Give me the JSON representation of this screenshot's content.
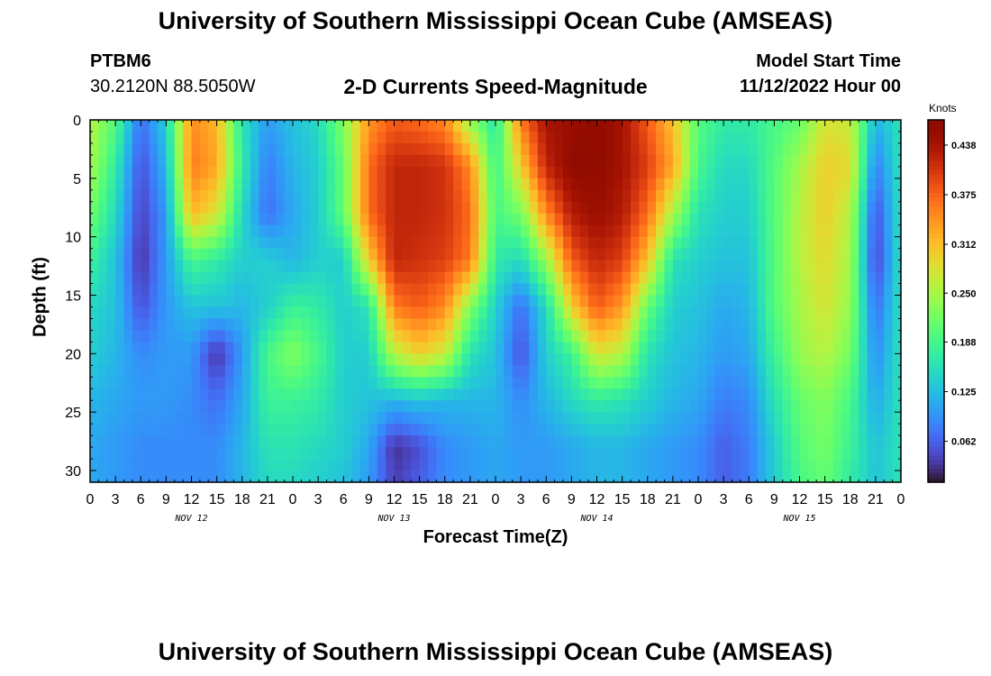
{
  "header": {
    "title": "University of Southern Mississippi Ocean Cube (AMSEAS)",
    "station_id": "PTBM6",
    "station_coords": "30.2120N  88.5050W",
    "plot_title": "2-D Currents Speed-Magnitude",
    "start_label": "Model Start Time",
    "start_value": "11/12/2022 Hour 00"
  },
  "footer": {
    "title": "University of Southern Mississippi Ocean Cube (AMSEAS)"
  },
  "chart_data": {
    "type": "heatmap",
    "title": "2-D Currents Speed-Magnitude",
    "xlabel": "Forecast Time(Z)",
    "ylabel": "Depth (ft)",
    "colorbar_label": "Knots",
    "xlim_hours": [
      0,
      96
    ],
    "ylim": [
      0,
      31
    ],
    "y_inverted": true,
    "yticks": [
      0,
      5,
      10,
      15,
      20,
      25,
      30
    ],
    "x_tick_labels": [
      "0",
      "3",
      "6",
      "9",
      "12",
      "15",
      "18",
      "21",
      "0",
      "3",
      "6",
      "9",
      "12",
      "15",
      "18",
      "21",
      "0",
      "3",
      "6",
      "9",
      "12",
      "15",
      "18",
      "21",
      "0",
      "3",
      "6",
      "9",
      "12",
      "15",
      "18",
      "21",
      "0"
    ],
    "date_labels": [
      {
        "label": "NOV 12",
        "hour": 12
      },
      {
        "label": "NOV 13",
        "hour": 36
      },
      {
        "label": "NOV 14",
        "hour": 60
      },
      {
        "label": "NOV 15",
        "hour": 84
      }
    ],
    "colorbar_ticks": [
      0.062,
      0.125,
      0.188,
      0.25,
      0.312,
      0.375,
      0.438
    ],
    "colorbar_range": [
      0.01,
      0.47
    ],
    "colors": {
      "low": "#30123b",
      "high": "#7a0403"
    },
    "depths_ft": [
      0,
      4,
      8,
      12,
      16,
      20,
      24,
      28,
      31
    ],
    "times_hours": [
      0,
      3,
      6,
      9,
      12,
      15,
      18,
      21,
      24,
      27,
      30,
      33,
      36,
      39,
      42,
      45,
      48,
      51,
      54,
      57,
      60,
      63,
      66,
      69,
      72,
      75,
      78,
      81,
      84,
      87,
      90,
      93,
      96
    ],
    "values": [
      [
        0.26,
        0.2,
        0.07,
        0.14,
        0.35,
        0.32,
        0.16,
        0.1,
        0.13,
        0.15,
        0.23,
        0.34,
        0.38,
        0.37,
        0.35,
        0.24,
        0.16,
        0.36,
        0.44,
        0.45,
        0.46,
        0.44,
        0.38,
        0.31,
        0.2,
        0.17,
        0.17,
        0.19,
        0.21,
        0.28,
        0.27,
        0.12,
        0.16
      ],
      [
        0.25,
        0.17,
        0.05,
        0.12,
        0.36,
        0.33,
        0.17,
        0.08,
        0.12,
        0.14,
        0.21,
        0.37,
        0.42,
        0.42,
        0.41,
        0.35,
        0.18,
        0.3,
        0.42,
        0.46,
        0.46,
        0.44,
        0.4,
        0.33,
        0.19,
        0.15,
        0.15,
        0.2,
        0.25,
        0.3,
        0.29,
        0.08,
        0.16
      ],
      [
        0.22,
        0.15,
        0.04,
        0.1,
        0.32,
        0.28,
        0.15,
        0.07,
        0.11,
        0.14,
        0.21,
        0.37,
        0.42,
        0.42,
        0.41,
        0.37,
        0.19,
        0.22,
        0.35,
        0.43,
        0.45,
        0.43,
        0.37,
        0.25,
        0.16,
        0.14,
        0.14,
        0.2,
        0.26,
        0.3,
        0.26,
        0.05,
        0.16
      ],
      [
        0.18,
        0.13,
        0.03,
        0.1,
        0.19,
        0.17,
        0.14,
        0.14,
        0.12,
        0.14,
        0.14,
        0.3,
        0.42,
        0.41,
        0.4,
        0.36,
        0.17,
        0.15,
        0.24,
        0.38,
        0.42,
        0.4,
        0.31,
        0.16,
        0.14,
        0.13,
        0.13,
        0.2,
        0.26,
        0.29,
        0.25,
        0.04,
        0.16
      ],
      [
        0.15,
        0.13,
        0.05,
        0.1,
        0.13,
        0.13,
        0.12,
        0.14,
        0.18,
        0.17,
        0.14,
        0.16,
        0.36,
        0.38,
        0.35,
        0.23,
        0.14,
        0.07,
        0.15,
        0.3,
        0.38,
        0.34,
        0.21,
        0.14,
        0.13,
        0.11,
        0.12,
        0.2,
        0.25,
        0.28,
        0.24,
        0.07,
        0.16
      ],
      [
        0.14,
        0.12,
        0.09,
        0.1,
        0.1,
        0.03,
        0.1,
        0.19,
        0.23,
        0.19,
        0.14,
        0.14,
        0.26,
        0.3,
        0.27,
        0.16,
        0.13,
        0.05,
        0.14,
        0.18,
        0.28,
        0.26,
        0.16,
        0.13,
        0.12,
        0.1,
        0.11,
        0.18,
        0.24,
        0.26,
        0.22,
        0.09,
        0.16
      ],
      [
        0.12,
        0.11,
        0.1,
        0.1,
        0.09,
        0.07,
        0.11,
        0.18,
        0.18,
        0.17,
        0.14,
        0.13,
        0.12,
        0.13,
        0.12,
        0.12,
        0.12,
        0.09,
        0.12,
        0.15,
        0.17,
        0.16,
        0.14,
        0.12,
        0.11,
        0.08,
        0.09,
        0.16,
        0.21,
        0.23,
        0.19,
        0.11,
        0.16
      ],
      [
        0.11,
        0.1,
        0.09,
        0.09,
        0.09,
        0.09,
        0.12,
        0.16,
        0.16,
        0.15,
        0.14,
        0.11,
        0.03,
        0.05,
        0.09,
        0.1,
        0.11,
        0.1,
        0.1,
        0.11,
        0.12,
        0.12,
        0.11,
        0.1,
        0.09,
        0.06,
        0.08,
        0.14,
        0.2,
        0.22,
        0.18,
        0.13,
        0.16
      ],
      [
        0.11,
        0.1,
        0.09,
        0.09,
        0.09,
        0.09,
        0.12,
        0.15,
        0.15,
        0.14,
        0.13,
        0.1,
        0.04,
        0.06,
        0.09,
        0.1,
        0.11,
        0.1,
        0.1,
        0.11,
        0.12,
        0.12,
        0.11,
        0.1,
        0.09,
        0.06,
        0.08,
        0.14,
        0.19,
        0.21,
        0.17,
        0.13,
        0.16
      ]
    ]
  }
}
